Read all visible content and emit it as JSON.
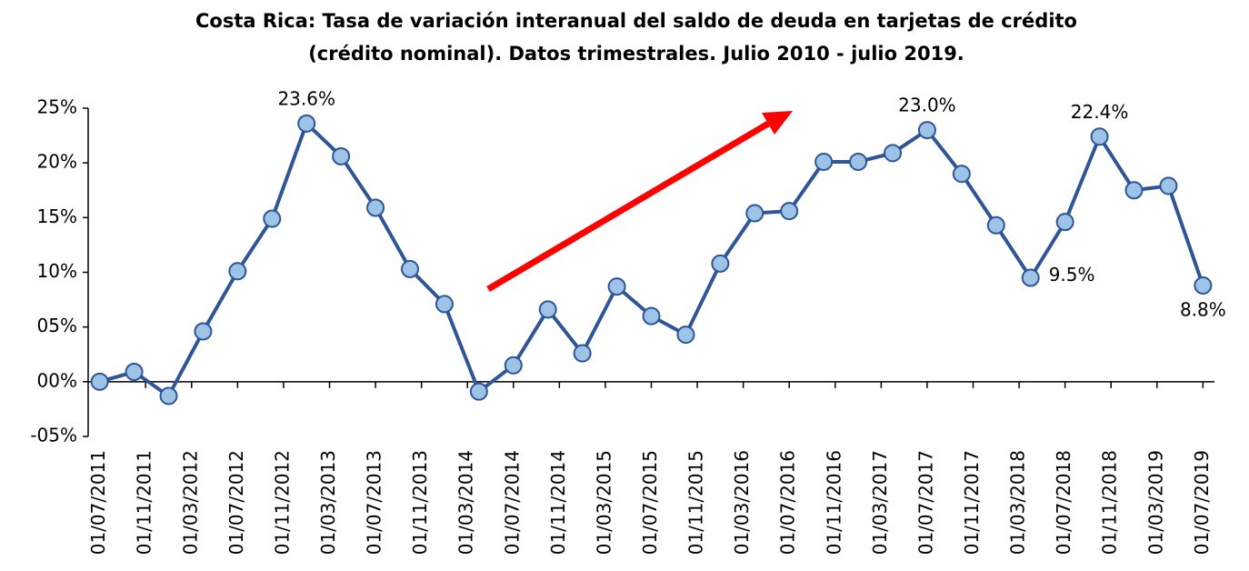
{
  "chart_data": {
    "type": "line",
    "title": "Costa Rica: Tasa de variación interanual del saldo de deuda en tarjetas de crédito",
    "subtitle": "(crédito nominal). Datos trimestrales. Julio 2010 - julio 2019.",
    "x": [
      "01/07/2011",
      "01/10/2011",
      "01/01/2012",
      "01/04/2012",
      "01/07/2012",
      "01/10/2012",
      "01/01/2013",
      "01/04/2013",
      "01/07/2013",
      "01/10/2013",
      "01/01/2014",
      "01/04/2014",
      "01/07/2014",
      "01/10/2014",
      "01/01/2015",
      "01/04/2015",
      "01/07/2015",
      "01/10/2015",
      "01/01/2016",
      "01/04/2016",
      "01/07/2016",
      "01/10/2016",
      "01/01/2017",
      "01/04/2017",
      "01/07/2017",
      "01/10/2017",
      "01/01/2018",
      "01/04/2018",
      "01/07/2018",
      "01/10/2018",
      "01/01/2019",
      "01/04/2019",
      "01/07/2019"
    ],
    "series": [
      {
        "name": "Tasa de variación",
        "color": "#2e5597",
        "marker_color": "#9dc3e6",
        "values": [
          0,
          0.9,
          -1.3,
          4.6,
          10.1,
          14.9,
          23.6,
          20.6,
          15.9,
          10.3,
          7.1,
          -0.9,
          1.5,
          6.6,
          2.6,
          8.7,
          6.0,
          4.3,
          10.8,
          15.4,
          15.6,
          20.1,
          20.1,
          20.9,
          23.0,
          19.0,
          14.3,
          9.5,
          14.6,
          22.4,
          17.5,
          17.9,
          8.8
        ],
        "value_labels": [
          null,
          null,
          null,
          null,
          null,
          null,
          "23.6%",
          null,
          null,
          null,
          null,
          null,
          null,
          null,
          null,
          null,
          null,
          null,
          null,
          null,
          null,
          null,
          null,
          null,
          "23.0%",
          null,
          null,
          "9.5%",
          null,
          "22.4%",
          null,
          null,
          "8.8%"
        ]
      }
    ],
    "xlim": [
      "01/06/2011",
      "01/08/2019"
    ],
    "xticks": [
      "01/07/2011",
      "01/11/2011",
      "01/03/2012",
      "01/07/2012",
      "01/11/2012",
      "01/03/2013",
      "01/07/2013",
      "01/11/2013",
      "01/03/2014",
      "01/07/2014",
      "01/11/2014",
      "01/03/2015",
      "01/07/2015",
      "01/11/2015",
      "01/03/2016",
      "01/07/2016",
      "01/11/2016",
      "01/03/2017",
      "01/07/2017",
      "01/11/2017",
      "01/03/2018",
      "01/07/2018",
      "01/11/2018",
      "01/03/2019",
      "01/07/2019"
    ],
    "ylim": [
      -5,
      25
    ],
    "yticks": [
      {
        "value": -5,
        "label": "-05%"
      },
      {
        "value": 0,
        "label": "00%"
      },
      {
        "value": 5,
        "label": "05%"
      },
      {
        "value": 10,
        "label": "10%"
      },
      {
        "value": 15,
        "label": "15%"
      },
      {
        "value": 20,
        "label": "20%"
      },
      {
        "value": 25,
        "label": "25%"
      }
    ]
  }
}
